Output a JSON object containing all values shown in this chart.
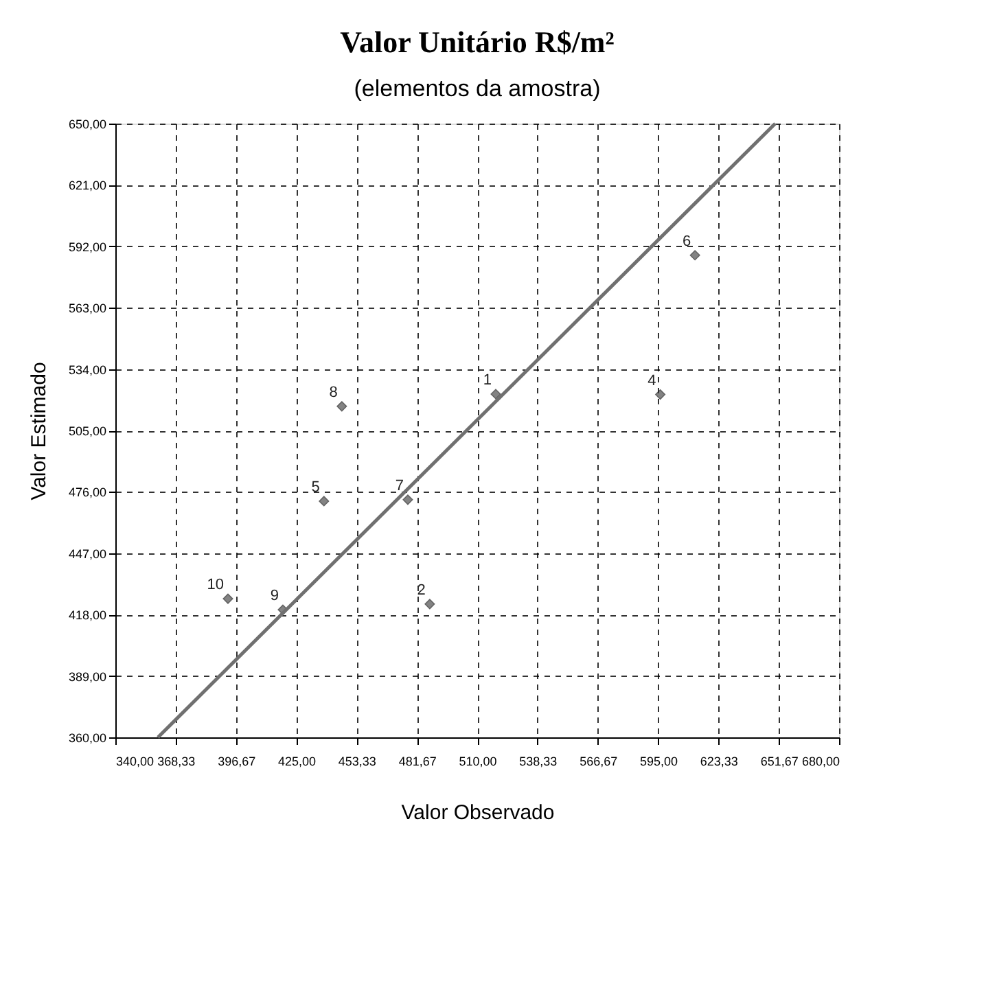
{
  "chart_data": {
    "type": "scatter",
    "title": "Valor Unitário R$/m²",
    "subtitle": "(elementos da amostra)",
    "xlabel": "Valor Observado",
    "ylabel": "Valor Estimado",
    "x": [
      518.7,
      487.7,
      596.0,
      438.0,
      612.3,
      477.4,
      446.4,
      418.7,
      392.9
    ],
    "series": [
      {
        "color": "#505050",
        "marker": "diamond",
        "values": [
          522.2,
          423.0,
          522.0,
          471.6,
          587.8,
          472.3,
          516.4,
          420.3,
          425.5
        ]
      },
      {
        "type": "line",
        "color": "#707070",
        "line_style": "solid",
        "x": [
          360,
          650
        ],
        "values": [
          360,
          650
        ]
      }
    ],
    "annotations": [
      {
        "text": "1",
        "x": 518.7,
        "y": 522.2
      },
      {
        "text": "2",
        "x": 487.7,
        "y": 423.0
      },
      {
        "text": "4",
        "x": 596.0,
        "y": 522.0
      },
      {
        "text": "5",
        "x": 438.0,
        "y": 471.6
      },
      {
        "text": "6",
        "x": 612.3,
        "y": 587.8
      },
      {
        "text": "7",
        "x": 477.4,
        "y": 472.3
      },
      {
        "text": "8",
        "x": 446.4,
        "y": 516.4
      },
      {
        "text": "9",
        "x": 418.7,
        "y": 420.3
      },
      {
        "text": "10",
        "x": 392.9,
        "y": 425.5
      }
    ],
    "xlim": [
      340,
      680
    ],
    "ylim": [
      360,
      650
    ],
    "xticks": [
      {
        "value": 340,
        "label": "340,00"
      },
      {
        "value": 368.33,
        "label": "368,33"
      },
      {
        "value": 396.67,
        "label": "396,67"
      },
      {
        "value": 425,
        "label": "425,00"
      },
      {
        "value": 453.33,
        "label": "453,33"
      },
      {
        "value": 481.67,
        "label": "481,67"
      },
      {
        "value": 510,
        "label": "510,00"
      },
      {
        "value": 538.33,
        "label": "538,33"
      },
      {
        "value": 566.67,
        "label": "566,67"
      },
      {
        "value": 595,
        "label": "595,00"
      },
      {
        "value": 623.33,
        "label": "623,33"
      },
      {
        "value": 651.67,
        "label": "651,67"
      },
      {
        "value": 680,
        "label": "680,00"
      }
    ],
    "yticks": [
      {
        "value": 360,
        "label": "360,00"
      },
      {
        "value": 389,
        "label": "389,00"
      },
      {
        "value": 418,
        "label": "418,00"
      },
      {
        "value": 447,
        "label": "447,00"
      },
      {
        "value": 476,
        "label": "476,00"
      },
      {
        "value": 505,
        "label": "505,00"
      },
      {
        "value": 534,
        "label": "534,00"
      },
      {
        "value": 563,
        "label": "563,00"
      },
      {
        "value": 592,
        "label": "592,00"
      },
      {
        "value": 621,
        "label": "621,00"
      },
      {
        "value": 650,
        "label": "650,00"
      }
    ],
    "grid": true
  }
}
